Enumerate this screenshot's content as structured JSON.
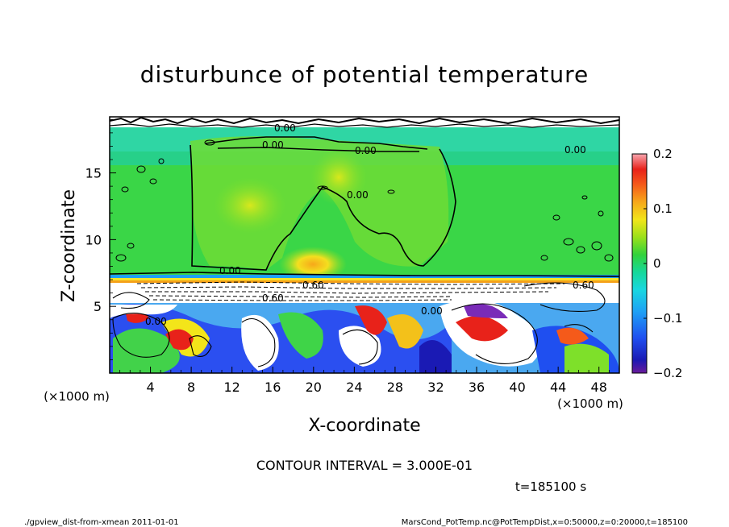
{
  "chart_data": {
    "type": "heatmap",
    "title": "disturbunce of potential temperature",
    "xlabel": "X-coordinate",
    "ylabel": "Z-coordinate",
    "x_unit": "(×1000 m)",
    "y_unit": "(×1000 m)",
    "xlim": [
      0,
      50
    ],
    "ylim": [
      0,
      19.2
    ],
    "x_ticks": [
      4,
      8,
      12,
      16,
      20,
      24,
      28,
      32,
      36,
      40,
      44,
      48
    ],
    "y_ticks": [
      5,
      10,
      15
    ],
    "colorbar": {
      "min": -0.2,
      "max": 0.2,
      "tick_labels": [
        "0.2",
        "0.1",
        "0",
        "−0.1",
        "−0.2"
      ],
      "tick_values": [
        0.2,
        0.1,
        0,
        -0.1,
        -0.2
      ]
    },
    "contour_labels": [
      "0.00",
      "0.00",
      "0.00",
      "0.00",
      "0.00",
      "0.00",
      "0.60",
      "0.60",
      "0.00",
      "0.00",
      "0.60"
    ],
    "contour_interval_text": "CONTOUR INTERVAL = 3.000E-01",
    "time_text": "t=185100 s",
    "footer_left": "./gpview_dist-from-xmean  2011-01-01",
    "footer_right": "MarsCond_PotTemp.nc@PotTempDist,x=0:50000,z=0:20000,t=185100"
  }
}
